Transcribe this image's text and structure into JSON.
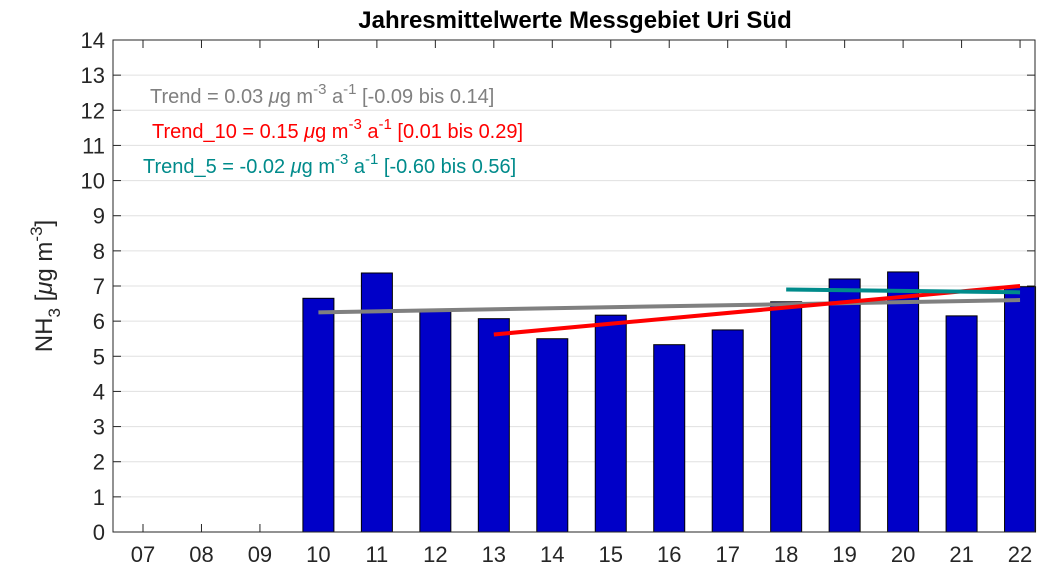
{
  "chart_data": {
    "type": "bar",
    "title": "Jahresmittelwerte Messgebiet Uri Süd",
    "ylabel_parts": [
      "NH",
      "3",
      " [",
      "μ",
      "g m",
      "-3",
      "]"
    ],
    "categories": [
      "07",
      "08",
      "09",
      "10",
      "11",
      "12",
      "13",
      "14",
      "15",
      "16",
      "17",
      "18",
      "19",
      "20",
      "21",
      "22"
    ],
    "values": [
      null,
      null,
      null,
      6.65,
      7.37,
      6.3,
      6.07,
      5.5,
      6.17,
      5.33,
      5.75,
      6.55,
      7.2,
      7.4,
      6.15,
      6.98
    ],
    "color": "#0000c8",
    "ylim": [
      0,
      14
    ],
    "yticks": [
      0,
      1,
      2,
      3,
      4,
      5,
      6,
      7,
      8,
      9,
      10,
      11,
      12,
      13,
      14
    ],
    "grid": true,
    "series": [
      {
        "name": "Trend",
        "color": "#808080",
        "values": [
          null,
          null,
          null,
          6.25,
          null,
          null,
          null,
          null,
          null,
          null,
          null,
          null,
          null,
          null,
          null,
          6.6
        ]
      },
      {
        "name": "Trend_10",
        "color": "#ff0000",
        "values": [
          null,
          null,
          null,
          null,
          null,
          null,
          5.62,
          null,
          null,
          null,
          null,
          null,
          null,
          null,
          null,
          7.0
        ]
      },
      {
        "name": "Trend_5",
        "color": "#008b8b",
        "values": [
          null,
          null,
          null,
          null,
          null,
          null,
          null,
          null,
          null,
          null,
          null,
          6.9,
          null,
          null,
          null,
          6.82
        ]
      }
    ],
    "annotations": [
      {
        "parts": [
          "Trend = 0.03 ",
          "μ",
          "g m",
          "-3",
          " a",
          "-1",
          " [-0.09 bis 0.14]"
        ],
        "color": "#808080"
      },
      {
        "parts": [
          "Trend_10 = 0.15 ",
          "μ",
          "g m",
          "-3",
          " a",
          "-1",
          " [0.01 bis 0.29]"
        ],
        "color": "#ff0000"
      },
      {
        "parts": [
          "Trend_5 = -0.02 ",
          "μ",
          "g m",
          "-3",
          " a",
          "-1",
          " [-0.60 bis 0.56]"
        ],
        "color": "#008b8b"
      }
    ]
  }
}
